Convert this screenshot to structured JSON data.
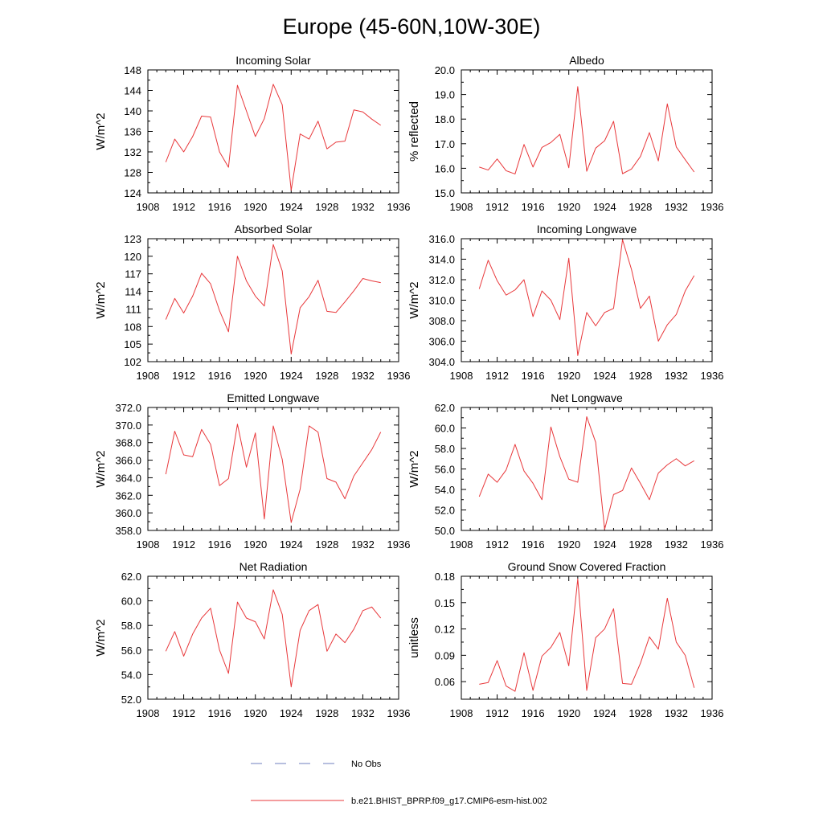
{
  "title": "Europe (45-60N,10W-30E)",
  "legend": [
    {
      "label": "No Obs",
      "style": "dashed",
      "color": "#6f7fbf"
    },
    {
      "label": "b.e21.BHIST_BPRP.f09_g17.CMIP6-esm-hist.002",
      "style": "solid",
      "color": "#e8383b"
    }
  ],
  "chart_data": [
    {
      "type": "line",
      "title": "Incoming Solar",
      "ylabel": "W/m^2",
      "xlim": [
        1908,
        1936
      ],
      "xticks": [
        1908,
        1912,
        1916,
        1920,
        1924,
        1928,
        1932,
        1936
      ],
      "ylim": [
        124,
        148
      ],
      "yticks": [
        "124",
        "128",
        "132",
        "136",
        "140",
        "144",
        "148"
      ],
      "x": [
        1910,
        1911,
        1912,
        1913,
        1914,
        1915,
        1916,
        1917,
        1918,
        1919,
        1920,
        1921,
        1922,
        1923,
        1924,
        1925,
        1926,
        1927,
        1928,
        1929,
        1930,
        1931,
        1932,
        1933,
        1934
      ],
      "series": [
        {
          "name": "b.e21.BHIST_BPRP.f09_g17.CMIP6-esm-hist.002",
          "color": "#e8383b",
          "values": [
            130.0,
            134.5,
            132.0,
            135.0,
            139.0,
            138.8,
            132.0,
            129.0,
            145.0,
            140.0,
            135.0,
            138.5,
            145.2,
            141.2,
            124.5,
            135.5,
            134.5,
            138.0,
            132.6,
            133.9,
            134.1,
            140.2,
            139.8,
            138.4,
            137.2
          ]
        }
      ]
    },
    {
      "type": "line",
      "title": "Albedo",
      "ylabel": "% reflected",
      "xlim": [
        1908,
        1936
      ],
      "xticks": [
        1908,
        1912,
        1916,
        1920,
        1924,
        1928,
        1932,
        1936
      ],
      "ylim": [
        15.0,
        20.0
      ],
      "yticks": [
        "15.0",
        "16.0",
        "17.0",
        "18.0",
        "19.0",
        "20.0"
      ],
      "x": [
        1910,
        1911,
        1912,
        1913,
        1914,
        1915,
        1916,
        1917,
        1918,
        1919,
        1920,
        1921,
        1922,
        1923,
        1924,
        1925,
        1926,
        1927,
        1928,
        1929,
        1930,
        1931,
        1932,
        1933,
        1934
      ],
      "series": [
        {
          "name": "b.e21.BHIST_BPRP.f09_g17.CMIP6-esm-hist.002",
          "color": "#e8383b",
          "values": [
            16.05,
            15.93,
            16.38,
            15.9,
            15.77,
            16.97,
            16.05,
            16.85,
            17.05,
            17.38,
            16.02,
            19.32,
            15.88,
            16.82,
            17.12,
            17.91,
            15.78,
            15.97,
            16.48,
            17.45,
            16.3,
            18.62,
            16.87,
            16.35,
            15.85
          ]
        }
      ]
    },
    {
      "type": "line",
      "title": "Absorbed Solar",
      "ylabel": "W/m^2",
      "xlim": [
        1908,
        1936
      ],
      "xticks": [
        1908,
        1912,
        1916,
        1920,
        1924,
        1928,
        1932,
        1936
      ],
      "ylim": [
        102,
        123
      ],
      "yticks": [
        "102",
        "105",
        "108",
        "111",
        "114",
        "117",
        "120",
        "123"
      ],
      "x": [
        1910,
        1911,
        1912,
        1913,
        1914,
        1915,
        1916,
        1917,
        1918,
        1919,
        1920,
        1921,
        1922,
        1923,
        1924,
        1925,
        1926,
        1927,
        1928,
        1929,
        1930,
        1931,
        1932,
        1933,
        1934
      ],
      "series": [
        {
          "name": "b.e21.BHIST_BPRP.f09_g17.CMIP6-esm-hist.002",
          "color": "#e8383b",
          "values": [
            109.2,
            112.8,
            110.3,
            113.2,
            117.1,
            115.3,
            110.7,
            107.1,
            120.0,
            115.8,
            113.2,
            111.5,
            122.0,
            117.5,
            103.3,
            111.2,
            113.1,
            115.9,
            110.6,
            110.4,
            112.2,
            114.1,
            116.2,
            115.8,
            115.5
          ]
        }
      ]
    },
    {
      "type": "line",
      "title": "Incoming Longwave",
      "ylabel": "W/m^2",
      "xlim": [
        1908,
        1936
      ],
      "xticks": [
        1908,
        1912,
        1916,
        1920,
        1924,
        1928,
        1932,
        1936
      ],
      "ylim": [
        304.0,
        316.0
      ],
      "yticks": [
        "304.0",
        "306.0",
        "308.0",
        "310.0",
        "312.0",
        "314.0",
        "316.0"
      ],
      "x": [
        1910,
        1911,
        1912,
        1913,
        1914,
        1915,
        1916,
        1917,
        1918,
        1919,
        1920,
        1921,
        1922,
        1923,
        1924,
        1925,
        1926,
        1927,
        1928,
        1929,
        1930,
        1931,
        1932,
        1933,
        1934
      ],
      "series": [
        {
          "name": "b.e21.BHIST_BPRP.f09_g17.CMIP6-esm-hist.002",
          "color": "#e8383b",
          "values": [
            311.1,
            313.9,
            311.9,
            310.5,
            311.0,
            312.0,
            308.4,
            310.9,
            310.0,
            308.1,
            314.1,
            304.6,
            308.8,
            307.5,
            308.8,
            309.2,
            315.9,
            313.0,
            309.2,
            310.4,
            306.0,
            307.6,
            308.6,
            310.9,
            312.4
          ]
        }
      ]
    },
    {
      "type": "line",
      "title": "Emitted Longwave",
      "ylabel": "W/m^2",
      "xlim": [
        1908,
        1936
      ],
      "xticks": [
        1908,
        1912,
        1916,
        1920,
        1924,
        1928,
        1932,
        1936
      ],
      "ylim": [
        358.0,
        372.0
      ],
      "yticks": [
        "358.0",
        "360.0",
        "362.0",
        "364.0",
        "366.0",
        "368.0",
        "370.0",
        "372.0"
      ],
      "x": [
        1910,
        1911,
        1912,
        1913,
        1914,
        1915,
        1916,
        1917,
        1918,
        1919,
        1920,
        1921,
        1922,
        1923,
        1924,
        1925,
        1926,
        1927,
        1928,
        1929,
        1930,
        1931,
        1932,
        1933,
        1934
      ],
      "series": [
        {
          "name": "b.e21.BHIST_BPRP.f09_g17.CMIP6-esm-hist.002",
          "color": "#e8383b",
          "values": [
            364.4,
            369.3,
            366.6,
            366.4,
            369.5,
            367.8,
            363.1,
            363.9,
            370.1,
            365.2,
            369.1,
            359.3,
            369.9,
            366.1,
            358.9,
            362.7,
            369.9,
            369.2,
            363.9,
            363.5,
            361.6,
            364.2,
            365.7,
            367.2,
            369.2
          ]
        }
      ]
    },
    {
      "type": "line",
      "title": "Net Longwave",
      "ylabel": "W/m^2",
      "xlim": [
        1908,
        1936
      ],
      "xticks": [
        1908,
        1912,
        1916,
        1920,
        1924,
        1928,
        1932,
        1936
      ],
      "ylim": [
        50.0,
        62.0
      ],
      "yticks": [
        "50.0",
        "52.0",
        "54.0",
        "56.0",
        "58.0",
        "60.0",
        "62.0"
      ],
      "x": [
        1910,
        1911,
        1912,
        1913,
        1914,
        1915,
        1916,
        1917,
        1918,
        1919,
        1920,
        1921,
        1922,
        1923,
        1924,
        1925,
        1926,
        1927,
        1928,
        1929,
        1930,
        1931,
        1932,
        1933,
        1934
      ],
      "series": [
        {
          "name": "b.e21.BHIST_BPRP.f09_g17.CMIP6-esm-hist.002",
          "color": "#e8383b",
          "values": [
            53.3,
            55.5,
            54.7,
            55.9,
            58.4,
            55.8,
            54.6,
            53.0,
            60.1,
            57.2,
            55.0,
            54.7,
            61.1,
            58.6,
            50.1,
            53.5,
            53.9,
            56.1,
            54.6,
            53.0,
            55.6,
            56.4,
            57.0,
            56.3,
            56.8
          ]
        }
      ]
    },
    {
      "type": "line",
      "title": "Net Radiation",
      "ylabel": "W/m^2",
      "xlim": [
        1908,
        1936
      ],
      "xticks": [
        1908,
        1912,
        1916,
        1920,
        1924,
        1928,
        1932,
        1936
      ],
      "ylim": [
        52.0,
        62.0
      ],
      "yticks": [
        "52.0",
        "54.0",
        "56.0",
        "58.0",
        "60.0",
        "62.0"
      ],
      "x": [
        1910,
        1911,
        1912,
        1913,
        1914,
        1915,
        1916,
        1917,
        1918,
        1919,
        1920,
        1921,
        1922,
        1923,
        1924,
        1925,
        1926,
        1927,
        1928,
        1929,
        1930,
        1931,
        1932,
        1933,
        1934
      ],
      "series": [
        {
          "name": "b.e21.BHIST_BPRP.f09_g17.CMIP6-esm-hist.002",
          "color": "#e8383b",
          "values": [
            55.9,
            57.5,
            55.5,
            57.3,
            58.6,
            59.4,
            56.0,
            54.1,
            59.9,
            58.6,
            58.3,
            56.9,
            60.9,
            58.9,
            53.0,
            57.6,
            59.2,
            59.7,
            55.9,
            57.3,
            56.6,
            57.7,
            59.2,
            59.5,
            58.6
          ]
        }
      ]
    },
    {
      "type": "line",
      "title": "Ground Snow Covered Fraction",
      "ylabel": "unitless",
      "xlim": [
        1908,
        1936
      ],
      "xticks": [
        1908,
        1912,
        1916,
        1920,
        1924,
        1928,
        1932,
        1936
      ],
      "ylim": [
        0.04,
        0.18
      ],
      "yticks": [
        "0.06",
        "0.09",
        "0.12",
        "0.15",
        "0.18"
      ],
      "ytick_values": [
        0.06,
        0.09,
        0.12,
        0.15,
        0.18
      ],
      "x": [
        1910,
        1911,
        1912,
        1913,
        1914,
        1915,
        1916,
        1917,
        1918,
        1919,
        1920,
        1921,
        1922,
        1923,
        1924,
        1925,
        1926,
        1927,
        1928,
        1929,
        1930,
        1931,
        1932,
        1933,
        1934
      ],
      "series": [
        {
          "name": "b.e21.BHIST_BPRP.f09_g17.CMIP6-esm-hist.002",
          "color": "#e8383b",
          "values": [
            0.057,
            0.059,
            0.084,
            0.055,
            0.049,
            0.093,
            0.05,
            0.089,
            0.099,
            0.116,
            0.078,
            0.177,
            0.05,
            0.11,
            0.12,
            0.143,
            0.058,
            0.057,
            0.081,
            0.111,
            0.097,
            0.155,
            0.105,
            0.09,
            0.053
          ]
        }
      ]
    }
  ]
}
